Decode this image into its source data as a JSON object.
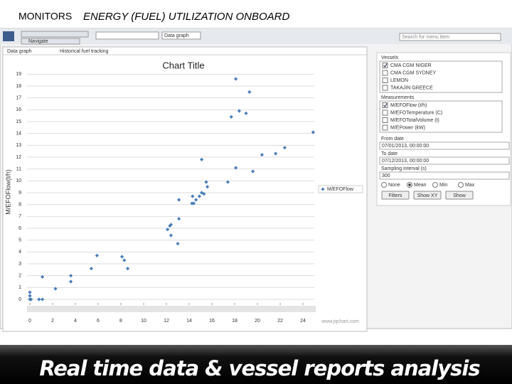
{
  "slide": {
    "title_prefix": "MONITORS",
    "title": "ENERGY (FUEL) UTILIZATION ONBOARD",
    "footer": "Real time data & vessel reports analysis"
  },
  "toolbar": {
    "navigate": "Navigate",
    "view": "Data graph",
    "search": "Search for menu item"
  },
  "tabs": [
    "Data graph",
    "Historical fuel tracking"
  ],
  "panel": {
    "vessels_label": "Vessels",
    "vessels": [
      {
        "name": "CMA CGM NIGER",
        "checked": true
      },
      {
        "name": "CMA CGM SYDNEY",
        "checked": false
      },
      {
        "name": "LEMON",
        "checked": false
      },
      {
        "name": "TAKAJIN GREECE",
        "checked": false
      }
    ],
    "measurements_label": "Measurements",
    "measurements": [
      {
        "name": "M/EFOFlow (t/h)",
        "checked": true
      },
      {
        "name": "M/EFOTemperature (C)",
        "checked": false
      },
      {
        "name": "M/EFOTotalVolume (t)",
        "checked": false
      },
      {
        "name": "M/EPower (kW)",
        "checked": false
      }
    ],
    "from_label": "From date",
    "from": "07/01/2013, 00:00:00",
    "to_label": "To date",
    "to": "07/12/2013, 00:00:00",
    "interval_label": "Sampling interval (s)",
    "interval": "300",
    "modes": [
      {
        "name": "None",
        "selected": false
      },
      {
        "name": "Mean",
        "selected": true
      },
      {
        "name": "Min",
        "selected": false
      },
      {
        "name": "Max",
        "selected": false
      }
    ],
    "buttons": [
      "Filters",
      "Show XY",
      "Show"
    ]
  },
  "chart_data": {
    "type": "scatter",
    "title": "Chart Title",
    "y_label": "M/EFOFlow(t/h)",
    "credit": "www.jqchart.com",
    "series": [
      {
        "name": "M/EFOFlow",
        "color": "#4a7ebb",
        "x": [
          0,
          0,
          0,
          0.1,
          0.8,
          1.1,
          1.1,
          2.25,
          3.6,
          3.6,
          5.4,
          5.9,
          8.1,
          8.3,
          8.6,
          12.1,
          12.3,
          12.4,
          12.4,
          13,
          13.1,
          13.1,
          14.25,
          14.3,
          14.4,
          14.6,
          14.9,
          15.1,
          15.1,
          15.3,
          15.5,
          15.6,
          17.4,
          17.7,
          18.1,
          18.1,
          18.4,
          19,
          19.3,
          19.6,
          20.4,
          21.6,
          22.4,
          24.9
        ],
        "values": [
          0,
          0.3,
          0.6,
          0,
          0,
          0,
          1.9,
          0.9,
          1.5,
          2.0,
          2.6,
          3.7,
          3.6,
          3.3,
          2.6,
          5.9,
          6.2,
          5.4,
          6.3,
          4.7,
          6.8,
          8.4,
          8.1,
          8.7,
          8.1,
          8.4,
          8.7,
          9.0,
          11.8,
          8.9,
          9.9,
          9.5,
          9.9,
          15.4,
          11.1,
          18.6,
          15.9,
          15.7,
          17.5,
          10.8,
          12.2,
          12.3,
          12.8,
          14.1
        ]
      }
    ],
    "xlim": [
      0,
      25
    ],
    "xticks": [
      0,
      2,
      4,
      6,
      8,
      10,
      12,
      14,
      16,
      18,
      20,
      22,
      24
    ],
    "ylim": [
      -0.3,
      19.5
    ],
    "yticks": [
      0,
      1,
      2,
      3,
      4,
      5,
      6,
      7,
      8,
      9,
      10,
      11,
      12,
      13,
      14,
      15,
      16,
      17,
      18,
      19
    ],
    "grid": true
  }
}
